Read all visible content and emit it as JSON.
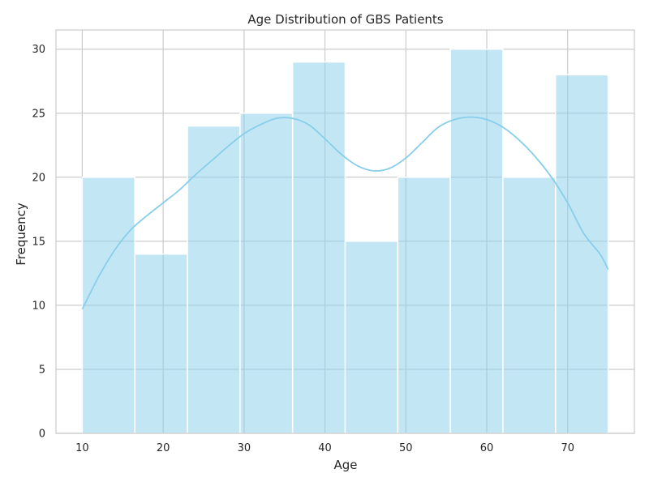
{
  "chart_data": {
    "type": "bar",
    "subtype": "histogram-with-density-curve",
    "title": "Age Distribution of GBS Patients",
    "xlabel": "Age",
    "ylabel": "Frequency",
    "bins": [
      {
        "start": 10.0,
        "end": 16.5,
        "count": 20
      },
      {
        "start": 16.5,
        "end": 23.0,
        "count": 14
      },
      {
        "start": 23.0,
        "end": 29.5,
        "count": 24
      },
      {
        "start": 29.5,
        "end": 36.0,
        "count": 25
      },
      {
        "start": 36.0,
        "end": 42.5,
        "count": 29
      },
      {
        "start": 42.5,
        "end": 49.0,
        "count": 15
      },
      {
        "start": 49.0,
        "end": 55.5,
        "count": 20
      },
      {
        "start": 55.5,
        "end": 62.0,
        "count": 30
      },
      {
        "start": 62.0,
        "end": 68.5,
        "count": 20
      },
      {
        "start": 68.5,
        "end": 75.0,
        "count": 28
      }
    ],
    "kde": {
      "x": [
        10,
        12,
        14,
        16,
        18,
        20,
        22,
        24,
        26,
        28,
        30,
        32,
        34,
        36,
        38,
        40,
        42,
        44,
        46,
        48,
        50,
        52,
        54,
        56,
        58,
        60,
        62,
        64,
        66,
        68,
        70,
        72,
        74,
        75
      ],
      "y": [
        9.7,
        12.2,
        14.3,
        15.9,
        17.0,
        18.0,
        19.0,
        20.2,
        21.3,
        22.4,
        23.4,
        24.1,
        24.6,
        24.6,
        24.1,
        23.0,
        21.8,
        20.9,
        20.5,
        20.7,
        21.5,
        22.7,
        23.9,
        24.5,
        24.7,
        24.5,
        23.9,
        22.9,
        21.6,
        20.0,
        18.0,
        15.6,
        14.0,
        12.8
      ]
    },
    "xticks": [
      10,
      20,
      30,
      40,
      50,
      60,
      70
    ],
    "yticks": [
      0,
      5,
      10,
      15,
      20,
      25,
      30
    ],
    "xlim": [
      6.75,
      78.25
    ],
    "ylim": [
      0,
      31.5
    ],
    "grid": true,
    "legend": "none",
    "colors": {
      "bar_fill": "#87ceeb",
      "bar_opacity": 0.5,
      "bar_edge": "#ffffff",
      "kde_line": "#87ceeb",
      "grid": "#cccccc",
      "frame": "#cccccc"
    }
  }
}
